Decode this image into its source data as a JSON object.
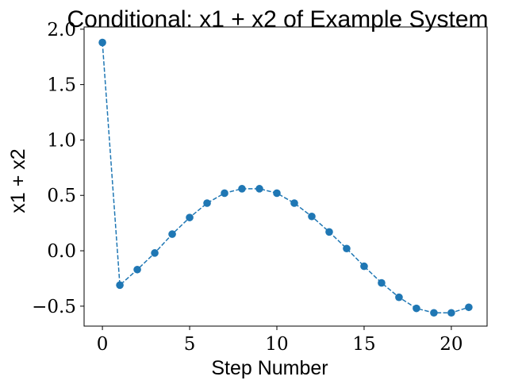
{
  "chart_data": {
    "type": "line",
    "title": "Conditional: x1 + x2 of Example System",
    "xlabel": "Step Number",
    "ylabel": "x1 + x2",
    "xlim": [
      -1.05,
      22.05
    ],
    "ylim": [
      -0.68,
      2.02
    ],
    "xticks": [
      0,
      5,
      10,
      15,
      20
    ],
    "xtick_labels": [
      "0",
      "5",
      "10",
      "15",
      "20"
    ],
    "yticks": [
      -0.5,
      0.0,
      0.5,
      1.0,
      1.5,
      2.0
    ],
    "ytick_labels": [
      "−0.5",
      "0.0",
      "0.5",
      "1.0",
      "1.5",
      "2.0"
    ],
    "grid": false,
    "series": [
      {
        "line_style": "dashed",
        "marker": "circle",
        "color": "#1f77b4",
        "x": [
          0,
          1,
          2,
          3,
          4,
          5,
          6,
          7,
          8,
          9,
          10,
          11,
          12,
          13,
          14,
          15,
          16,
          17,
          18,
          19,
          20,
          21
        ],
        "y": [
          1.88,
          -0.31,
          -0.17,
          -0.02,
          0.15,
          0.3,
          0.43,
          0.52,
          0.56,
          0.56,
          0.52,
          0.43,
          0.31,
          0.17,
          0.02,
          -0.14,
          -0.29,
          -0.42,
          -0.52,
          -0.56,
          -0.56,
          -0.51
        ]
      }
    ]
  }
}
